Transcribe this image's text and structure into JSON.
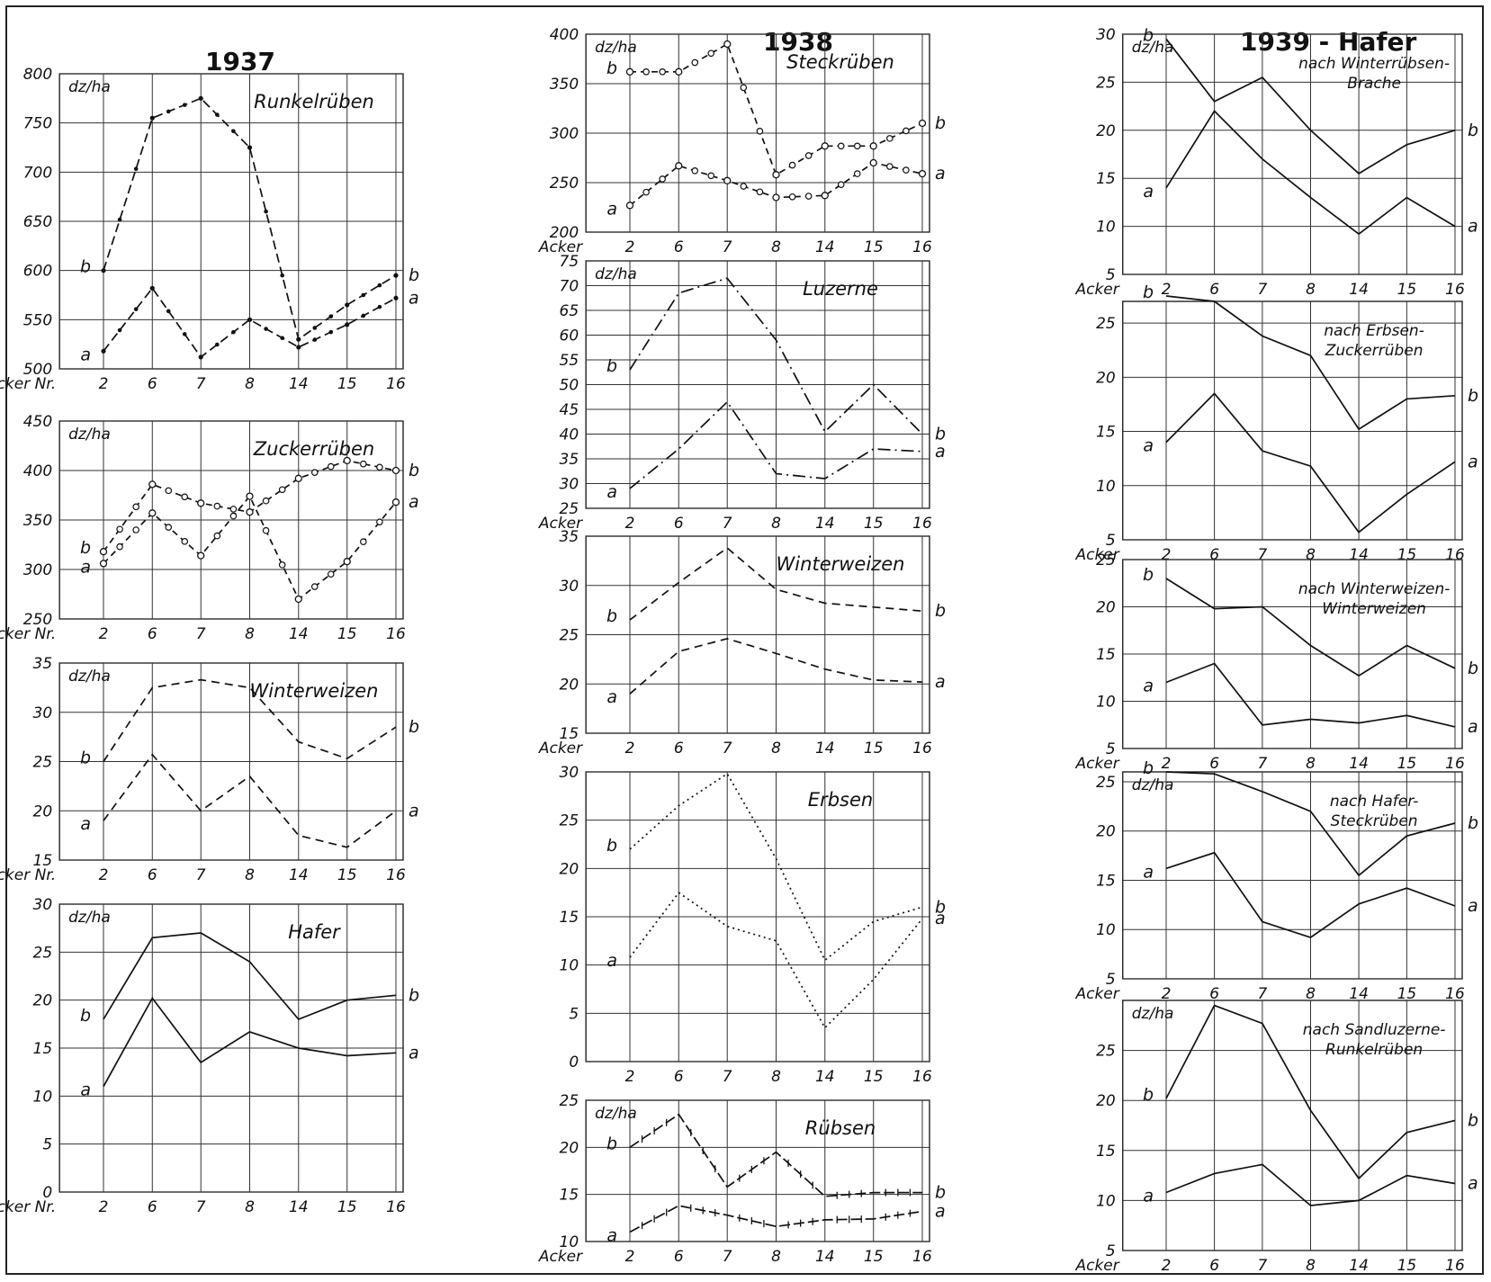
{
  "page": {
    "year_1937": "1937",
    "year_1938": "1938",
    "year_1939": "1939 - Hafer"
  },
  "chart_data": [
    {
      "panel": "1937-runkelrueben",
      "type": "line",
      "style": "dashdot-dots",
      "title": "Runkelrüben",
      "ylabel": "dz/ha",
      "xlabel": "Acker Nr.",
      "categories": [
        "2",
        "6",
        "7",
        "8",
        "14",
        "15",
        "16"
      ],
      "ylim": [
        500,
        800
      ],
      "yticks": [
        500,
        550,
        600,
        650,
        700,
        750,
        800
      ],
      "series": [
        {
          "name": "b",
          "values": [
            600,
            755,
            775,
            725,
            530,
            565,
            595
          ]
        },
        {
          "name": "a",
          "values": [
            518,
            582,
            512,
            550,
            522,
            545,
            572
          ]
        }
      ]
    },
    {
      "panel": "1937-zuckerrueben",
      "type": "line",
      "style": "dash-circles",
      "title": "Zuckerrüben",
      "ylabel": "dz/ha",
      "xlabel": "Acker Nr.",
      "categories": [
        "2",
        "6",
        "7",
        "8",
        "14",
        "15",
        "16"
      ],
      "ylim": [
        250,
        450
      ],
      "yticks": [
        250,
        300,
        350,
        400,
        450
      ],
      "series": [
        {
          "name": "b",
          "values": [
            318,
            386,
            367,
            358,
            392,
            410,
            400
          ]
        },
        {
          "name": "a",
          "values": [
            306,
            357,
            314,
            374,
            270,
            308,
            368
          ]
        }
      ]
    },
    {
      "panel": "1937-winterweizen",
      "type": "line",
      "style": "dashed",
      "title": "Winterweizen",
      "ylabel": "dz/ha",
      "xlabel": "Acker Nr.",
      "categories": [
        "2",
        "6",
        "7",
        "8",
        "14",
        "15",
        "16"
      ],
      "ylim": [
        15,
        35
      ],
      "yticks": [
        15,
        20,
        25,
        30,
        35
      ],
      "series": [
        {
          "name": "b",
          "values": [
            25,
            32.5,
            33.3,
            32.5,
            27,
            25.3,
            28.5
          ]
        },
        {
          "name": "a",
          "values": [
            19,
            25.7,
            20,
            23.5,
            17.5,
            16.3,
            20
          ]
        }
      ]
    },
    {
      "panel": "1937-hafer",
      "type": "line",
      "style": "solid",
      "title": "Hafer",
      "ylabel": "dz/ha",
      "xlabel": "Acker Nr.",
      "categories": [
        "2",
        "6",
        "7",
        "8",
        "14",
        "15",
        "16"
      ],
      "ylim": [
        0,
        30
      ],
      "yticks": [
        0,
        5,
        10,
        15,
        20,
        25,
        30
      ],
      "series": [
        {
          "name": "b",
          "values": [
            18,
            26.5,
            27,
            24,
            18,
            20,
            20.5
          ]
        },
        {
          "name": "a",
          "values": [
            11,
            20.2,
            13.5,
            16.7,
            15,
            14.2,
            14.5
          ]
        }
      ]
    },
    {
      "panel": "1938-steckrueben",
      "type": "line",
      "style": "dash-circles",
      "title": "Steckrüben",
      "ylabel": "dz/ha",
      "xlabel": "Acker",
      "categories": [
        "2",
        "6",
        "7",
        "8",
        "14",
        "15",
        "16"
      ],
      "ylim": [
        200,
        400
      ],
      "yticks": [
        200,
        250,
        300,
        350,
        400
      ],
      "series": [
        {
          "name": "b",
          "values": [
            362,
            362,
            390,
            258,
            287,
            287,
            310
          ]
        },
        {
          "name": "a",
          "values": [
            227,
            267,
            252,
            235,
            237,
            270,
            259
          ]
        }
      ]
    },
    {
      "panel": "1938-luzerne",
      "type": "line",
      "style": "dashdot",
      "title": "Luzerne",
      "ylabel": "dz/ha",
      "xlabel": "Acker",
      "categories": [
        "2",
        "6",
        "7",
        "8",
        "14",
        "15",
        "16"
      ],
      "ylim": [
        25,
        75
      ],
      "yticks": [
        25,
        30,
        35,
        40,
        45,
        50,
        55,
        60,
        65,
        70,
        75
      ],
      "series": [
        {
          "name": "b",
          "values": [
            53,
            68.5,
            71.5,
            59,
            40.5,
            50,
            40
          ]
        },
        {
          "name": "a",
          "values": [
            29,
            37,
            46.5,
            32,
            31,
            37,
            36.5
          ]
        }
      ]
    },
    {
      "panel": "1938-winterweizen",
      "type": "line",
      "style": "dashed",
      "title": "Winterweizen",
      "ylabel": "",
      "xlabel": "Acker",
      "categories": [
        "2",
        "6",
        "7",
        "8",
        "14",
        "15",
        "16"
      ],
      "ylim": [
        15,
        35
      ],
      "yticks": [
        15,
        20,
        25,
        30,
        35
      ],
      "series": [
        {
          "name": "b",
          "values": [
            26.5,
            30.3,
            33.8,
            29.6,
            28.2,
            27.8,
            27.4
          ]
        },
        {
          "name": "a",
          "values": [
            19,
            23.3,
            24.6,
            23.1,
            21.5,
            20.4,
            20.2
          ]
        }
      ]
    },
    {
      "panel": "1938-erbsen",
      "type": "line",
      "style": "dotted",
      "title": "Erbsen",
      "ylabel": "",
      "xlabel": "",
      "categories": [
        "2",
        "6",
        "7",
        "8",
        "14",
        "15",
        "16"
      ],
      "ylim": [
        0,
        30
      ],
      "yticks": [
        0,
        5,
        10,
        15,
        20,
        25,
        30
      ],
      "series": [
        {
          "name": "b",
          "values": [
            22,
            26.5,
            29.8,
            21,
            10.5,
            14.5,
            16
          ]
        },
        {
          "name": "a",
          "values": [
            10.8,
            17.5,
            14,
            12.5,
            3.5,
            8.5,
            14.8
          ]
        }
      ]
    },
    {
      "panel": "1938-ruebsen",
      "type": "line",
      "style": "dash-ticks",
      "title": "Rübsen",
      "ylabel": "dz/ha",
      "xlabel": "Acker",
      "categories": [
        "2",
        "6",
        "7",
        "8",
        "14",
        "15",
        "16"
      ],
      "ylim": [
        10,
        25
      ],
      "yticks": [
        10,
        15,
        20,
        25
      ],
      "series": [
        {
          "name": "b",
          "values": [
            20,
            23.5,
            15.8,
            19.5,
            14.8,
            15.2,
            15.2
          ]
        },
        {
          "name": "a",
          "values": [
            11,
            13.8,
            12.8,
            11.6,
            12.3,
            12.4,
            13.2
          ]
        }
      ]
    },
    {
      "panel": "1939-winterruebsen-brache",
      "type": "line",
      "style": "solid",
      "title": "nach Winterrübsen-\nBrache",
      "ylabel": "dz/ha",
      "xlabel": "Acker",
      "categories": [
        "2",
        "6",
        "7",
        "8",
        "14",
        "15",
        "16"
      ],
      "ylim": [
        5,
        30
      ],
      "yticks": [
        5,
        10,
        15,
        20,
        25,
        30
      ],
      "series": [
        {
          "name": "b",
          "values": [
            29.5,
            23,
            25.5,
            20,
            15.5,
            18.5,
            20
          ]
        },
        {
          "name": "a",
          "values": [
            14,
            22,
            17,
            13,
            9.2,
            13,
            10
          ]
        }
      ]
    },
    {
      "panel": "1939-erbsen-zuckerrueben",
      "type": "line",
      "style": "solid",
      "title": "nach Erbsen-\nZuckerrüben",
      "ylabel": "",
      "xlabel": "Acker",
      "categories": [
        "2",
        "6",
        "7",
        "8",
        "14",
        "15",
        "16"
      ],
      "ylim": [
        5,
        27
      ],
      "yticks": [
        5,
        10,
        15,
        20,
        25
      ],
      "series": [
        {
          "name": "b",
          "values": [
            27.5,
            27,
            23.8,
            22,
            15.2,
            18,
            18.3
          ]
        },
        {
          "name": "a",
          "values": [
            14,
            18.5,
            13.2,
            11.8,
            5.7,
            9.2,
            12.2
          ]
        }
      ]
    },
    {
      "panel": "1939-winterweizen-winterweizen",
      "type": "line",
      "style": "solid",
      "title": "nach Winterweizen-\nWinterweizen",
      "ylabel": "",
      "xlabel": "Acker",
      "categories": [
        "2",
        "6",
        "7",
        "8",
        "14",
        "15",
        "16"
      ],
      "ylim": [
        5,
        25
      ],
      "yticks": [
        5,
        10,
        15,
        20,
        25
      ],
      "series": [
        {
          "name": "b",
          "values": [
            23,
            19.8,
            20,
            15.9,
            12.7,
            15.9,
            13.5
          ]
        },
        {
          "name": "a",
          "values": [
            12,
            14,
            7.5,
            8.1,
            7.7,
            8.5,
            7.3
          ]
        }
      ]
    },
    {
      "panel": "1939-hafer-steckrueben",
      "type": "line",
      "style": "solid",
      "title": "nach Hafer-\nSteckrüben",
      "ylabel": "dz/ha",
      "xlabel": "Acker",
      "categories": [
        "2",
        "6",
        "7",
        "8",
        "14",
        "15",
        "16"
      ],
      "ylim": [
        5,
        26
      ],
      "yticks": [
        5,
        10,
        15,
        20,
        25
      ],
      "series": [
        {
          "name": "b",
          "values": [
            26,
            25.8,
            24,
            22,
            15.5,
            19.5,
            20.8
          ]
        },
        {
          "name": "a",
          "values": [
            16.2,
            17.8,
            10.8,
            9.2,
            12.6,
            14.2,
            12.4
          ]
        }
      ]
    },
    {
      "panel": "1939-sandluzerne-runkelrueben",
      "type": "line",
      "style": "solid",
      "title": "nach Sandluzerne-\nRunkelrüben",
      "ylabel": "dz/ha",
      "xlabel": "Acker",
      "categories": [
        "2",
        "6",
        "7",
        "8",
        "14",
        "15",
        "16"
      ],
      "ylim": [
        5,
        30
      ],
      "yticks": [
        5,
        10,
        15,
        20,
        25
      ],
      "series": [
        {
          "name": "b",
          "values": [
            20.2,
            29.5,
            27.7,
            19,
            12.2,
            16.8,
            18
          ]
        },
        {
          "name": "a",
          "values": [
            10.8,
            12.7,
            13.6,
            9.5,
            10,
            12.5,
            11.7
          ]
        }
      ]
    }
  ]
}
